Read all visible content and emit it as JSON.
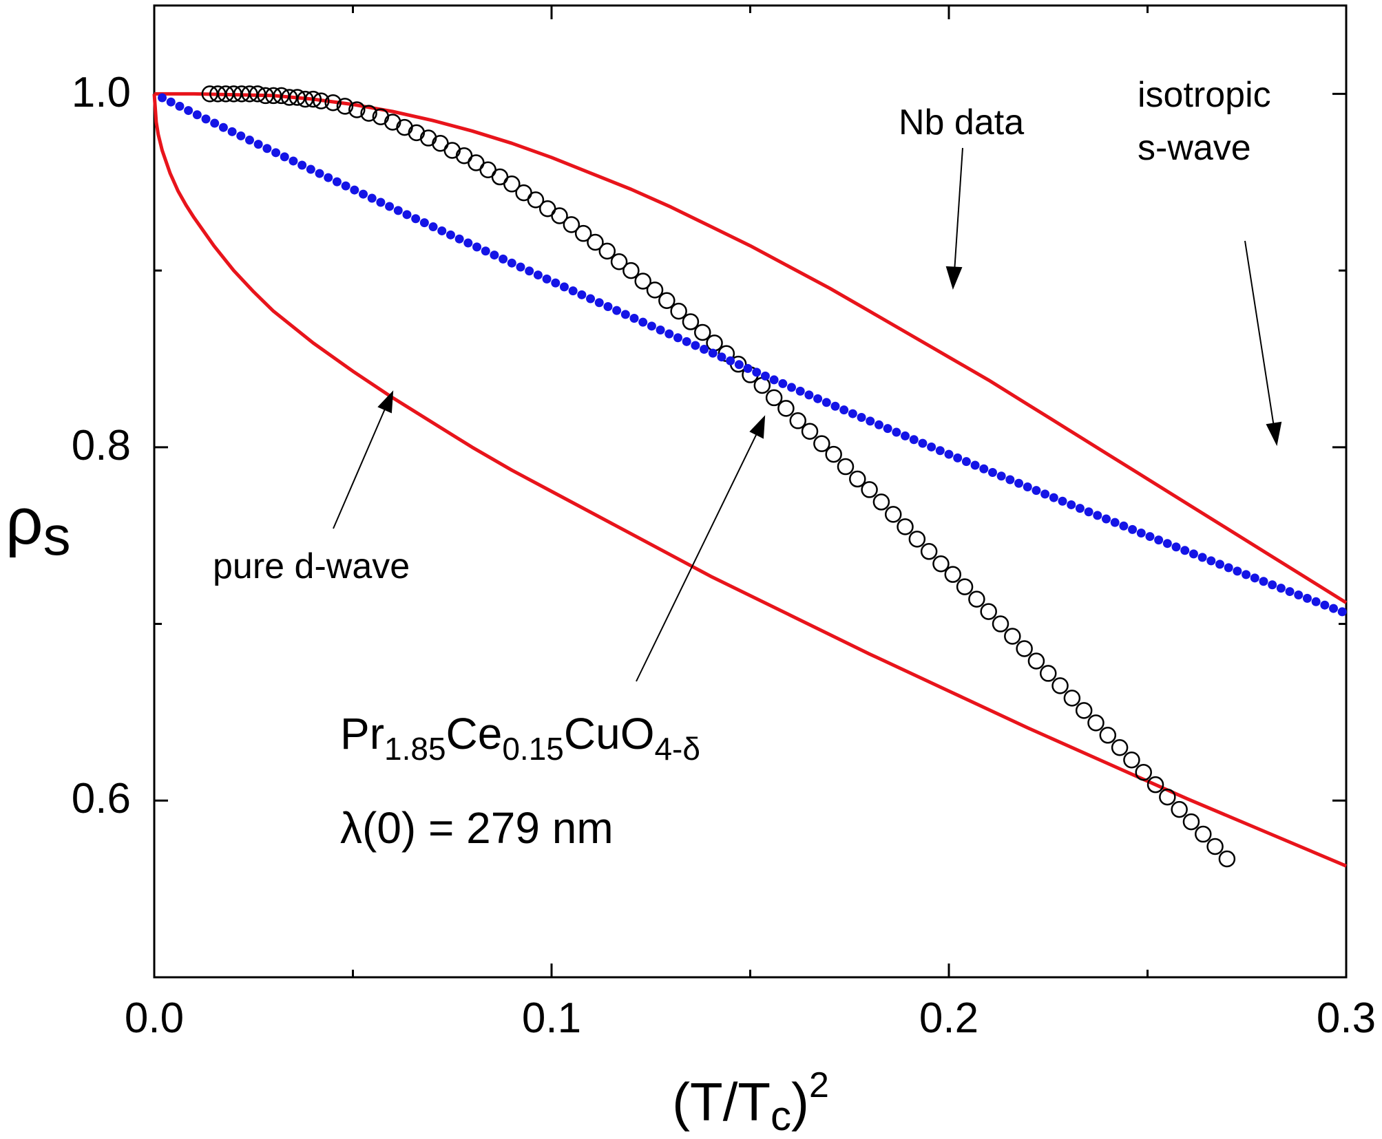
{
  "chart_data": {
    "type": "scatter",
    "xlabel": {
      "base": "(T/T",
      "sub": "c",
      "tail": ")",
      "sup": "2"
    },
    "ylabel": {
      "base": "ρ",
      "sub": "s"
    },
    "xlim": [
      0.0,
      0.3
    ],
    "ylim": [
      0.5,
      1.05
    ],
    "x_ticks": [
      0.0,
      0.1,
      0.2,
      0.3
    ],
    "x_tick_labels": [
      "0.0",
      "0.1",
      "0.2",
      "0.3"
    ],
    "y_ticks": [
      0.6,
      0.8,
      1.0
    ],
    "y_tick_labels": [
      "0.6",
      "0.8",
      "1.0"
    ],
    "x_minor_ticks": [
      0.05,
      0.15,
      0.25
    ],
    "y_minor_ticks": [
      0.7,
      0.9
    ],
    "grid": false,
    "series": [
      {
        "name": "isotropic s-wave",
        "kind": "line",
        "color": "#e8141b",
        "x": [
          0.0,
          0.01,
          0.02,
          0.03,
          0.04,
          0.05,
          0.06,
          0.07,
          0.08,
          0.09,
          0.1,
          0.11,
          0.12,
          0.13,
          0.14,
          0.15,
          0.16,
          0.17,
          0.18,
          0.19,
          0.2,
          0.21,
          0.22,
          0.23,
          0.24,
          0.25,
          0.26,
          0.27,
          0.28,
          0.29,
          0.3
        ],
        "y": [
          1.0,
          1.0,
          0.9995,
          0.999,
          0.997,
          0.994,
          0.99,
          0.985,
          0.979,
          0.972,
          0.964,
          0.955,
          0.946,
          0.936,
          0.925,
          0.914,
          0.902,
          0.89,
          0.877,
          0.864,
          0.851,
          0.838,
          0.824,
          0.81,
          0.796,
          0.782,
          0.768,
          0.754,
          0.74,
          0.726,
          0.712
        ]
      },
      {
        "name": "pure d-wave",
        "kind": "line",
        "color": "#e8141b",
        "x": [
          0.0,
          0.0005,
          0.001,
          0.002,
          0.004,
          0.006,
          0.008,
          0.01,
          0.015,
          0.02,
          0.025,
          0.03,
          0.04,
          0.05,
          0.06,
          0.07,
          0.08,
          0.09,
          0.1,
          0.12,
          0.14,
          0.16,
          0.18,
          0.2,
          0.22,
          0.24,
          0.26,
          0.28,
          0.3
        ],
        "y": [
          1.0,
          0.984,
          0.977,
          0.968,
          0.955,
          0.945,
          0.937,
          0.93,
          0.914,
          0.9,
          0.888,
          0.877,
          0.859,
          0.843,
          0.828,
          0.814,
          0.8,
          0.787,
          0.775,
          0.751,
          0.727,
          0.705,
          0.683,
          0.662,
          0.641,
          0.621,
          0.601,
          0.582,
          0.563
        ]
      },
      {
        "name": "Nb data",
        "kind": "open-circles",
        "color": "#000000",
        "x": [
          0.014,
          0.016,
          0.018,
          0.02,
          0.022,
          0.024,
          0.026,
          0.028,
          0.03,
          0.032,
          0.034,
          0.036,
          0.038,
          0.04,
          0.042,
          0.045,
          0.048,
          0.051,
          0.054,
          0.057,
          0.06,
          0.063,
          0.066,
          0.069,
          0.072,
          0.075,
          0.078,
          0.081,
          0.084,
          0.087,
          0.09,
          0.093,
          0.096,
          0.099,
          0.102,
          0.105,
          0.108,
          0.111,
          0.114,
          0.117,
          0.12,
          0.123,
          0.126,
          0.129,
          0.132,
          0.135,
          0.138,
          0.141,
          0.144,
          0.147,
          0.15,
          0.153,
          0.156,
          0.159,
          0.162,
          0.165,
          0.168,
          0.171,
          0.174,
          0.177,
          0.18,
          0.183,
          0.186,
          0.189,
          0.192,
          0.195,
          0.198,
          0.201,
          0.204,
          0.207,
          0.21,
          0.213,
          0.216,
          0.219,
          0.222,
          0.225,
          0.228,
          0.231,
          0.234,
          0.237,
          0.24,
          0.243,
          0.246,
          0.249,
          0.252,
          0.255,
          0.258,
          0.261,
          0.264,
          0.267,
          0.27
        ],
        "y": [
          1.0,
          1.0,
          1.0,
          1.0,
          1.0,
          1.0,
          1.0,
          0.999,
          0.999,
          0.999,
          0.998,
          0.998,
          0.997,
          0.997,
          0.996,
          0.995,
          0.993,
          0.991,
          0.989,
          0.987,
          0.984,
          0.981,
          0.978,
          0.975,
          0.972,
          0.968,
          0.965,
          0.961,
          0.957,
          0.953,
          0.949,
          0.944,
          0.94,
          0.935,
          0.931,
          0.926,
          0.921,
          0.916,
          0.911,
          0.905,
          0.9,
          0.894,
          0.889,
          0.883,
          0.877,
          0.871,
          0.865,
          0.859,
          0.853,
          0.847,
          0.841,
          0.835,
          0.828,
          0.822,
          0.815,
          0.809,
          0.802,
          0.796,
          0.789,
          0.782,
          0.776,
          0.769,
          0.762,
          0.755,
          0.748,
          0.741,
          0.734,
          0.728,
          0.721,
          0.714,
          0.707,
          0.7,
          0.693,
          0.686,
          0.679,
          0.672,
          0.665,
          0.658,
          0.651,
          0.644,
          0.637,
          0.63,
          0.623,
          0.616,
          0.609,
          0.602,
          0.595,
          0.588,
          0.581,
          0.574,
          0.567
        ]
      },
      {
        "name": "Pr1.85Ce0.15CuO4-δ",
        "kind": "filled-dots",
        "color": "#1414e6",
        "x_start": 0.002,
        "x_step": 0.0022,
        "count": 136,
        "model": "rho = 1 - 1.1*x + 0.4*x^2 (approx.)"
      }
    ],
    "annotations": {
      "nb_data": "Nb data",
      "s_wave_line1": "isotropic",
      "s_wave_line2": "s-wave",
      "d_wave": "pure d-wave",
      "compound": {
        "p1": "Pr",
        "s1": "1.85",
        "p2": "Ce",
        "s2": "0.15",
        "p3": "CuO",
        "s3": "4-δ"
      },
      "lambda": "λ(0) = 279 nm"
    }
  }
}
